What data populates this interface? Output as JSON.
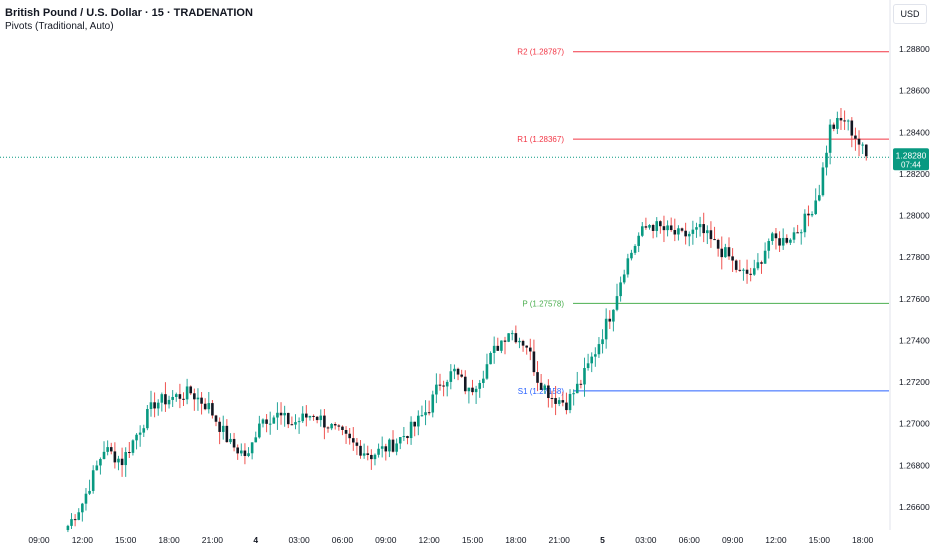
{
  "legend": {
    "title": "British Pound / U.S. Dollar · 15 · TRADENATION",
    "indicator": "Pivots (Traditional, Auto)"
  },
  "currency": "USD",
  "last_price": {
    "value": "1.28280",
    "countdown": "07:44",
    "level": 1.2828,
    "color": "#089981"
  },
  "colors": {
    "up": "#089981",
    "down": "#131722",
    "wick_up": "#26a69a",
    "wick_down": "#ef5350"
  },
  "pivots": [
    {
      "label": "R2 (1.28787)",
      "value": 1.28787,
      "color": "#f23645"
    },
    {
      "label": "R1 (1.28367)",
      "value": 1.28367,
      "color": "#f23645"
    },
    {
      "label": "P (1.27578)",
      "value": 1.27578,
      "color": "#4caf50"
    },
    {
      "label": "S1 (1.27158)",
      "value": 1.27158,
      "color": "#2962ff"
    }
  ],
  "chart_data": {
    "type": "candlestick",
    "title": "British Pound / U.S. Dollar · 15 · TRADENATION",
    "ylim": [
      1.265,
      1.2885
    ],
    "y_ticks": [
      "1.26600",
      "1.26800",
      "1.27000",
      "1.27200",
      "1.27400",
      "1.27600",
      "1.27800",
      "1.28000",
      "1.28200",
      "1.28400",
      "1.28600",
      "1.28800"
    ],
    "x_ticks": [
      "09:00",
      "12:00",
      "15:00",
      "18:00",
      "21:00",
      "4",
      "03:00",
      "06:00",
      "09:00",
      "12:00",
      "15:00",
      "18:00",
      "21:00",
      "5",
      "03:00",
      "06:00",
      "09:00",
      "12:00",
      "15:00",
      "18:00"
    ],
    "x_tick_bold": [
      false,
      false,
      false,
      false,
      false,
      true,
      false,
      false,
      false,
      false,
      false,
      false,
      false,
      true,
      false,
      false,
      false,
      false,
      false,
      false
    ],
    "candle_interval": "15m",
    "first_candle_time": "11:00",
    "anchors": [
      [
        0,
        1.2651
      ],
      [
        4,
        1.2662
      ],
      [
        10,
        1.2688
      ],
      [
        15,
        1.2682
      ],
      [
        20,
        1.2698
      ],
      [
        24,
        1.271
      ],
      [
        28,
        1.2712
      ],
      [
        34,
        1.2715
      ],
      [
        39,
        1.2708
      ],
      [
        45,
        1.269
      ],
      [
        50,
        1.2684
      ],
      [
        53,
        1.2702
      ],
      [
        58,
        1.2704
      ],
      [
        62,
        1.27
      ],
      [
        68,
        1.2705
      ],
      [
        73,
        1.2698
      ],
      [
        79,
        1.269
      ],
      [
        84,
        1.2685
      ],
      [
        90,
        1.269
      ],
      [
        96,
        1.2699
      ],
      [
        100,
        1.2708
      ],
      [
        103,
        1.272
      ],
      [
        107,
        1.2725
      ],
      [
        111,
        1.2715
      ],
      [
        115,
        1.2725
      ],
      [
        118,
        1.2735
      ],
      [
        122,
        1.2745
      ],
      [
        127,
        1.2738
      ],
      [
        130,
        1.2722
      ],
      [
        134,
        1.2713
      ],
      [
        138,
        1.271
      ],
      [
        142,
        1.272
      ],
      [
        146,
        1.2735
      ],
      [
        150,
        1.2752
      ],
      [
        154,
        1.2775
      ],
      [
        158,
        1.279
      ],
      [
        161,
        1.2796
      ],
      [
        165,
        1.2793
      ],
      [
        170,
        1.279
      ],
      [
        175,
        1.2793
      ],
      [
        179,
        1.2786
      ],
      [
        183,
        1.278
      ],
      [
        186,
        1.2772
      ],
      [
        190,
        1.2772
      ],
      [
        194,
        1.2788
      ],
      [
        198,
        1.2788
      ],
      [
        202,
        1.2793
      ],
      [
        205,
        1.28
      ],
      [
        208,
        1.2812
      ],
      [
        211,
        1.2842
      ],
      [
        215,
        1.2846
      ],
      [
        218,
        1.2838
      ],
      [
        221,
        1.2828
      ]
    ]
  },
  "candle_seed": 7
}
